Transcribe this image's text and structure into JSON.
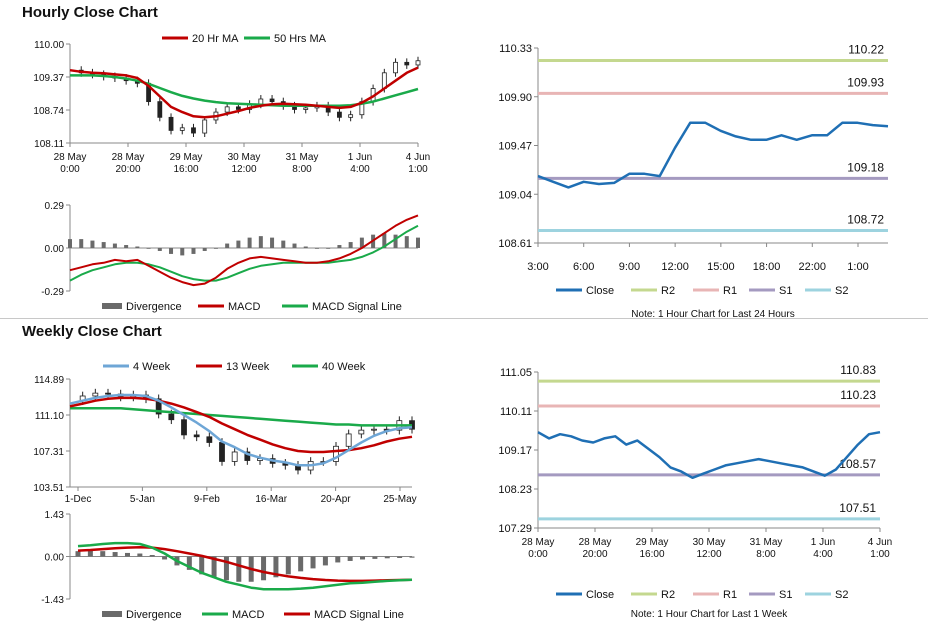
{
  "sections": {
    "hourly_title": "Hourly Close Chart",
    "weekly_title": "Weekly Close Chart"
  },
  "colors": {
    "red": "#c00000",
    "green": "#1aaa4a",
    "blue": "#1f6fb4",
    "lightblue": "#6ea6d6",
    "r2": "#c4d88f",
    "r1": "#e8b5b5",
    "s1": "#a49ac0",
    "s2": "#9dd3df",
    "bar": "#6a6a6a",
    "axis": "#888888"
  },
  "chart_data": [
    {
      "id": "hourly_price",
      "type": "candlestick",
      "legend": [
        "20 Hr MA",
        "50 Hrs MA"
      ],
      "yticks": [
        "110.00",
        "109.37",
        "108.74",
        "108.11"
      ],
      "ylim": [
        108.11,
        110.0
      ],
      "xticks": [
        [
          "28 May",
          "0:00"
        ],
        [
          "28 May",
          "20:00"
        ],
        [
          "29 May",
          "16:00"
        ],
        [
          "30 May",
          "12:00"
        ],
        [
          "31 May",
          "8:00"
        ],
        [
          "1 Jun",
          "4:00"
        ],
        [
          "4 Jun",
          "1:00"
        ]
      ],
      "close": [
        109.5,
        109.45,
        109.42,
        109.38,
        109.35,
        109.3,
        109.25,
        108.9,
        108.6,
        108.35,
        108.4,
        108.3,
        108.55,
        108.7,
        108.8,
        108.75,
        108.85,
        108.95,
        108.9,
        108.82,
        108.75,
        108.78,
        108.82,
        108.7,
        108.6,
        108.65,
        108.9,
        109.15,
        109.45,
        109.65,
        109.6,
        109.68
      ],
      "ma20": [
        109.5,
        109.47,
        109.45,
        109.44,
        109.42,
        109.4,
        109.35,
        109.2,
        109.0,
        108.8,
        108.7,
        108.62,
        108.6,
        108.62,
        108.67,
        108.72,
        108.78,
        108.82,
        108.85,
        108.86,
        108.85,
        108.84,
        108.82,
        108.8,
        108.78,
        108.8,
        108.88,
        109.0,
        109.15,
        109.3,
        109.45,
        109.55
      ],
      "ma50": [
        109.4,
        109.4,
        109.4,
        109.39,
        109.37,
        109.34,
        109.3,
        109.24,
        109.16,
        109.08,
        109.01,
        108.96,
        108.92,
        108.89,
        108.87,
        108.86,
        108.85,
        108.84,
        108.83,
        108.82,
        108.82,
        108.82,
        108.82,
        108.82,
        108.82,
        108.83,
        108.86,
        108.9,
        108.96,
        109.02,
        109.08,
        109.14
      ]
    },
    {
      "id": "hourly_macd",
      "type": "bar+line",
      "legend": [
        "Divergence",
        "MACD",
        "MACD Signal Line"
      ],
      "yticks": [
        "0.29",
        "0.00",
        "-0.29"
      ],
      "ylim": [
        -0.29,
        0.29
      ],
      "divergence": [
        0.06,
        0.06,
        0.05,
        0.04,
        0.03,
        0.02,
        0.01,
        0.0,
        -0.02,
        -0.04,
        -0.05,
        -0.04,
        -0.02,
        0.0,
        0.03,
        0.05,
        0.07,
        0.08,
        0.07,
        0.05,
        0.03,
        0.01,
        0.0,
        0.0,
        0.02,
        0.04,
        0.07,
        0.09,
        0.1,
        0.09,
        0.08,
        0.07
      ],
      "macd": [
        -0.15,
        -0.13,
        -0.11,
        -0.1,
        -0.08,
        -0.09,
        -0.08,
        -0.12,
        -0.16,
        -0.2,
        -0.23,
        -0.25,
        -0.24,
        -0.2,
        -0.14,
        -0.1,
        -0.07,
        -0.06,
        -0.07,
        -0.08,
        -0.09,
        -0.1,
        -0.1,
        -0.09,
        -0.07,
        -0.04,
        0.0,
        0.05,
        0.1,
        0.15,
        0.19,
        0.22
      ],
      "signal": [
        -0.22,
        -0.18,
        -0.15,
        -0.13,
        -0.11,
        -0.1,
        -0.1,
        -0.11,
        -0.13,
        -0.16,
        -0.19,
        -0.21,
        -0.22,
        -0.22,
        -0.2,
        -0.17,
        -0.14,
        -0.12,
        -0.11,
        -0.1,
        -0.1,
        -0.1,
        -0.1,
        -0.1,
        -0.09,
        -0.08,
        -0.06,
        -0.03,
        0.01,
        0.06,
        0.11,
        0.15
      ]
    },
    {
      "id": "hourly_24h",
      "type": "line",
      "yticks": [
        "110.33",
        "109.90",
        "109.47",
        "109.04",
        "108.61"
      ],
      "ylim": [
        108.61,
        110.33
      ],
      "xticks": [
        "3:00",
        "6:00",
        "9:00",
        "12:00",
        "15:00",
        "18:00",
        "22:00",
        "1:00"
      ],
      "levels": [
        {
          "name": "R2",
          "value": 110.22,
          "label": "110.22"
        },
        {
          "name": "R1",
          "value": 109.93,
          "label": "109.93"
        },
        {
          "name": "S1",
          "value": 109.18,
          "label": "109.18"
        },
        {
          "name": "S2",
          "value": 108.72,
          "label": "108.72"
        }
      ],
      "legend": [
        "Close",
        "R2",
        "R1",
        "S1",
        "S2"
      ],
      "note": "Note: 1 Hour Chart for Last 24 Hours",
      "close": [
        109.2,
        109.15,
        109.1,
        109.15,
        109.13,
        109.14,
        109.22,
        109.22,
        109.2,
        109.45,
        109.67,
        109.67,
        109.6,
        109.55,
        109.52,
        109.52,
        109.56,
        109.52,
        109.56,
        109.56,
        109.67,
        109.67,
        109.65,
        109.64
      ]
    },
    {
      "id": "weekly_price",
      "type": "candlestick",
      "legend": [
        "4 Week",
        "13 Week",
        "40 Week"
      ],
      "yticks": [
        "114.89",
        "111.10",
        "107.31",
        "103.51"
      ],
      "ylim": [
        103.51,
        114.89
      ],
      "xticks": [
        "1-Dec",
        "5-Jan",
        "9-Feb",
        "16-Mar",
        "20-Apr",
        "25-May"
      ],
      "close": [
        112.6,
        113.1,
        113.4,
        113.3,
        113.0,
        113.2,
        112.8,
        111.2,
        110.6,
        109.0,
        108.8,
        108.2,
        106.2,
        107.2,
        106.3,
        106.5,
        106.0,
        105.8,
        105.3,
        106.2,
        106.2,
        107.8,
        109.1,
        109.5,
        109.6,
        109.5,
        110.5,
        109.6
      ],
      "w4": [
        112.3,
        112.6,
        112.9,
        113.1,
        113.2,
        113.2,
        113.1,
        112.6,
        111.9,
        111.1,
        110.3,
        109.4,
        108.3,
        107.7,
        107.0,
        106.6,
        106.3,
        106.1,
        105.8,
        105.8,
        106.0,
        106.6,
        107.4,
        108.2,
        108.9,
        109.4,
        109.7,
        109.8
      ],
      "w13": [
        112.0,
        112.3,
        112.6,
        112.8,
        112.9,
        112.9,
        112.8,
        112.6,
        112.3,
        111.9,
        111.4,
        110.9,
        110.2,
        109.6,
        109.0,
        108.5,
        108.0,
        107.6,
        107.3,
        107.2,
        107.2,
        107.3,
        107.4,
        107.6,
        107.9,
        108.3,
        108.6,
        108.8
      ],
      "w40": [
        111.8,
        111.8,
        111.8,
        111.8,
        111.8,
        111.7,
        111.6,
        111.5,
        111.4,
        111.3,
        111.2,
        111.1,
        111.0,
        110.9,
        110.8,
        110.7,
        110.6,
        110.5,
        110.4,
        110.3,
        110.2,
        110.1,
        110.1,
        110.0,
        110.0,
        110.0,
        110.0,
        110.0
      ]
    },
    {
      "id": "weekly_macd",
      "type": "bar+line",
      "legend": [
        "Divergence",
        "MACD",
        "MACD Signal Line"
      ],
      "yticks": [
        "1.43",
        "0.00",
        "-1.43"
      ],
      "ylim": [
        -1.43,
        1.43
      ],
      "divergence": [
        0.18,
        0.2,
        0.18,
        0.15,
        0.12,
        0.1,
        0.05,
        -0.1,
        -0.3,
        -0.45,
        -0.6,
        -0.7,
        -0.8,
        -0.85,
        -0.85,
        -0.8,
        -0.7,
        -0.6,
        -0.5,
        -0.4,
        -0.3,
        -0.2,
        -0.15,
        -0.1,
        -0.08,
        -0.06,
        -0.05,
        -0.04
      ],
      "macd": [
        0.35,
        0.38,
        0.42,
        0.45,
        0.45,
        0.42,
        0.3,
        0.1,
        -0.15,
        -0.35,
        -0.55,
        -0.7,
        -0.85,
        -0.95,
        -1.05,
        -1.1,
        -1.1,
        -1.1,
        -1.08,
        -1.05,
        -1.0,
        -0.95,
        -0.9,
        -0.88,
        -0.85,
        -0.82,
        -0.8,
        -0.78
      ],
      "signal": [
        0.2,
        0.22,
        0.25,
        0.28,
        0.3,
        0.31,
        0.3,
        0.25,
        0.18,
        0.1,
        0.02,
        -0.08,
        -0.18,
        -0.3,
        -0.42,
        -0.52,
        -0.6,
        -0.67,
        -0.72,
        -0.76,
        -0.79,
        -0.81,
        -0.82,
        -0.82,
        -0.81,
        -0.8,
        -0.79,
        -0.78
      ]
    },
    {
      "id": "weekly_1w",
      "type": "line",
      "yticks": [
        "111.05",
        "110.11",
        "109.17",
        "108.23",
        "107.29"
      ],
      "ylim": [
        107.29,
        111.05
      ],
      "xticks": [
        [
          "28 May",
          "0:00"
        ],
        [
          "28 May",
          "20:00"
        ],
        [
          "29 May",
          "16:00"
        ],
        [
          "30 May",
          "12:00"
        ],
        [
          "31 May",
          "8:00"
        ],
        [
          "1 Jun",
          "4:00"
        ],
        [
          "4 Jun",
          "1:00"
        ]
      ],
      "levels": [
        {
          "name": "R2",
          "value": 110.83,
          "label": "110.83"
        },
        {
          "name": "R1",
          "value": 110.23,
          "label": "110.23"
        },
        {
          "name": "S1",
          "value": 108.57,
          "label": "108.57"
        },
        {
          "name": "S2",
          "value": 107.51,
          "label": "107.51"
        }
      ],
      "legend": [
        "Close",
        "R2",
        "R1",
        "S1",
        "S2"
      ],
      "note": "Note: 1 Hour Chart for Last 1 Week",
      "close": [
        109.6,
        109.45,
        109.55,
        109.5,
        109.4,
        109.35,
        109.45,
        109.5,
        109.3,
        109.4,
        109.2,
        109.0,
        108.75,
        108.65,
        108.5,
        108.6,
        108.7,
        108.8,
        108.85,
        108.9,
        108.95,
        108.9,
        108.85,
        108.8,
        108.75,
        108.65,
        108.55,
        108.7,
        109.0,
        109.3,
        109.55,
        109.6
      ]
    }
  ]
}
